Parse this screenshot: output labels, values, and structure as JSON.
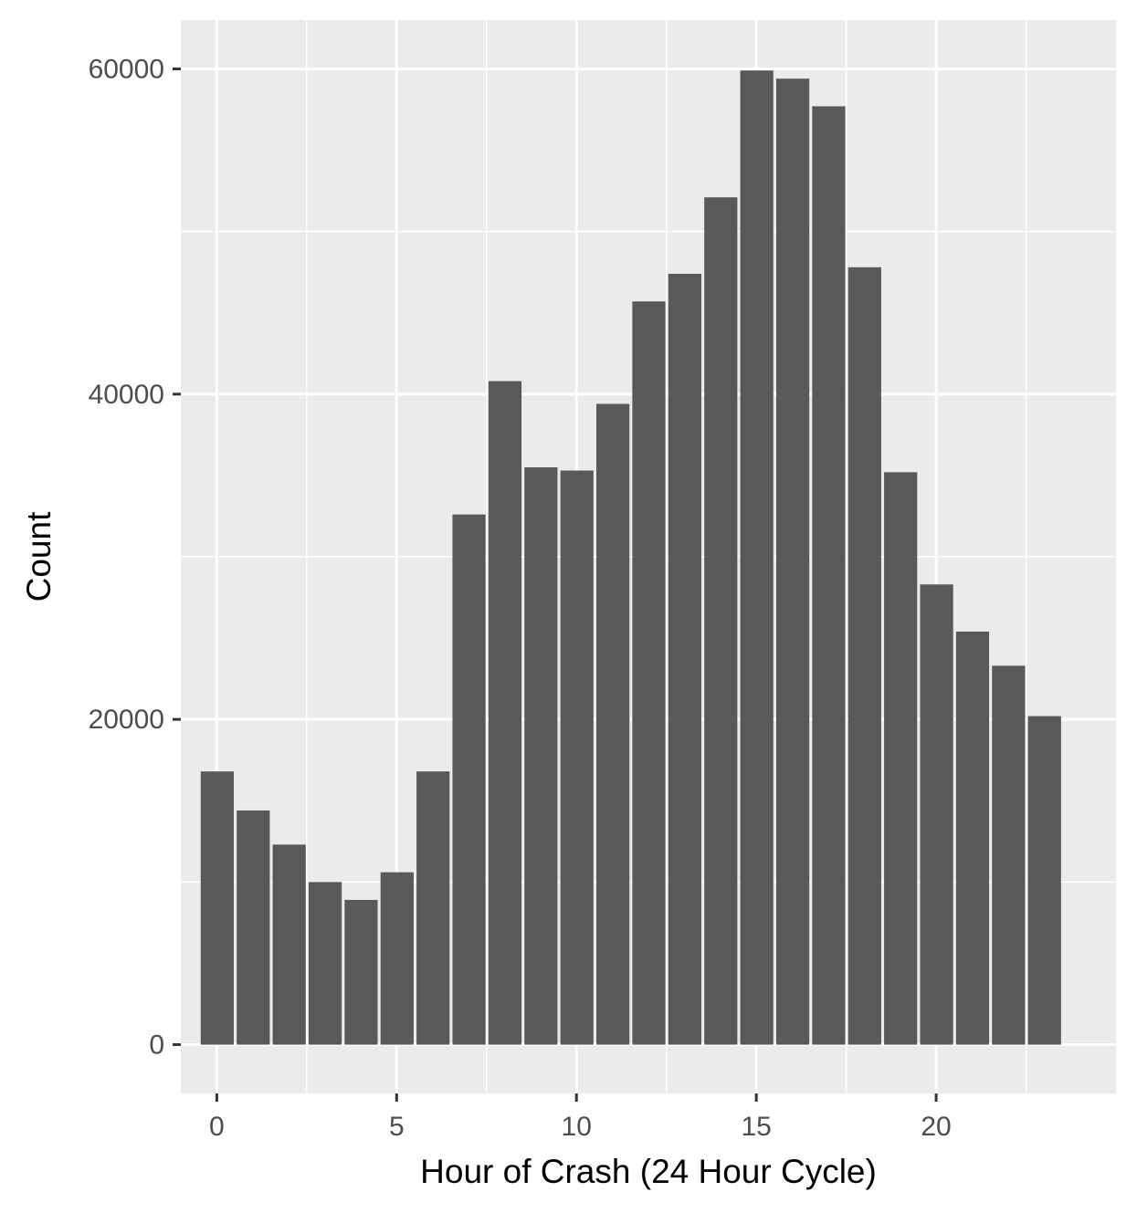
{
  "chart_data": {
    "type": "bar",
    "xlabel": "Hour of Crash (24 Hour Cycle)",
    "ylabel": "Count",
    "x": [
      0,
      1,
      2,
      3,
      4,
      5,
      6,
      7,
      8,
      9,
      10,
      11,
      12,
      13,
      14,
      15,
      16,
      17,
      18,
      19,
      20,
      21,
      22,
      23
    ],
    "values": [
      16800,
      14400,
      12300,
      10000,
      8900,
      10600,
      16800,
      32600,
      40800,
      35500,
      35300,
      39400,
      45700,
      47400,
      52100,
      59900,
      59400,
      57700,
      47800,
      35200,
      28300,
      25400,
      23300,
      20200
    ],
    "xlim": [
      -1,
      25
    ],
    "ylim": [
      -3000,
      63000
    ],
    "x_ticks": [
      0,
      5,
      10,
      15,
      20
    ],
    "x_tick_labels": [
      "0",
      "5",
      "10",
      "15",
      "20"
    ],
    "y_ticks": [
      0,
      20000,
      40000,
      60000
    ],
    "y_tick_labels": [
      "0",
      "20000",
      "40000",
      "60000"
    ],
    "grid": true,
    "colors": {
      "bar": "#595959",
      "panel": "#ebebeb",
      "grid": "#ffffff"
    }
  }
}
